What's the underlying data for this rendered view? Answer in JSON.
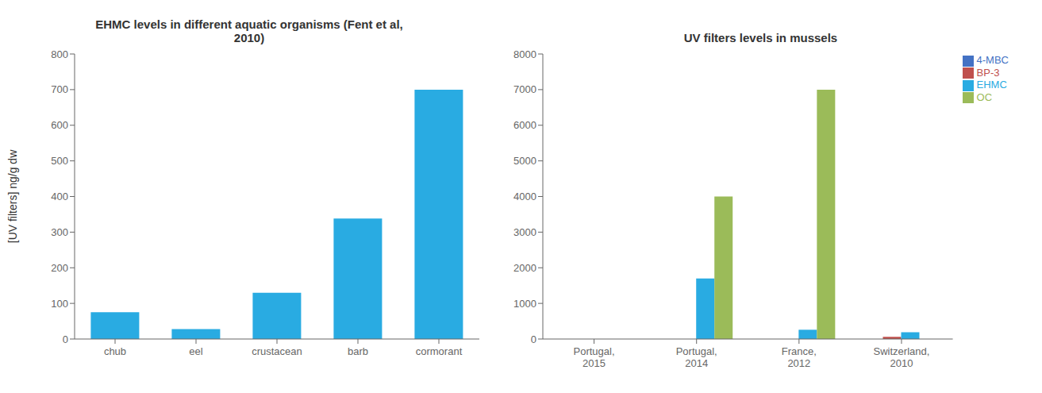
{
  "chart_data": [
    {
      "type": "bar",
      "title": "EHMC levels in different aquatic organisms (Fent et al,\n2010)",
      "categories": [
        "chub",
        "eel",
        "crustacean",
        "barb",
        "cormorant"
      ],
      "values": [
        75,
        28,
        130,
        338,
        700
      ],
      "color": "#29ABE2",
      "ylabel": "[UV filters] ng/g dw",
      "ylim": [
        0,
        800
      ],
      "yticks": [
        0,
        100,
        200,
        300,
        400,
        500,
        600,
        700,
        800
      ],
      "grid": false
    },
    {
      "type": "bar",
      "title": "UV filters levels in mussels",
      "categories": [
        "Portugal,\n2015",
        "Portugal,\n2014",
        "France,\n2012",
        "Switzerland,\n2010"
      ],
      "series": [
        {
          "name": "4-MBC",
          "color": "#4472C4",
          "values": [
            0,
            0,
            0,
            0
          ]
        },
        {
          "name": "BP-3",
          "color": "#C0504D",
          "values": [
            0,
            0,
            0,
            60
          ]
        },
        {
          "name": "EHMC",
          "color": "#29ABE2",
          "values": [
            0,
            1700,
            260,
            190
          ]
        },
        {
          "name": "OC",
          "color": "#9BBB59",
          "values": [
            0,
            4000,
            7000,
            0
          ]
        }
      ],
      "ylim": [
        0,
        8000
      ],
      "yticks": [
        0,
        1000,
        2000,
        3000,
        4000,
        5000,
        6000,
        7000,
        8000
      ],
      "legend": "upper right",
      "grid": false
    }
  ]
}
